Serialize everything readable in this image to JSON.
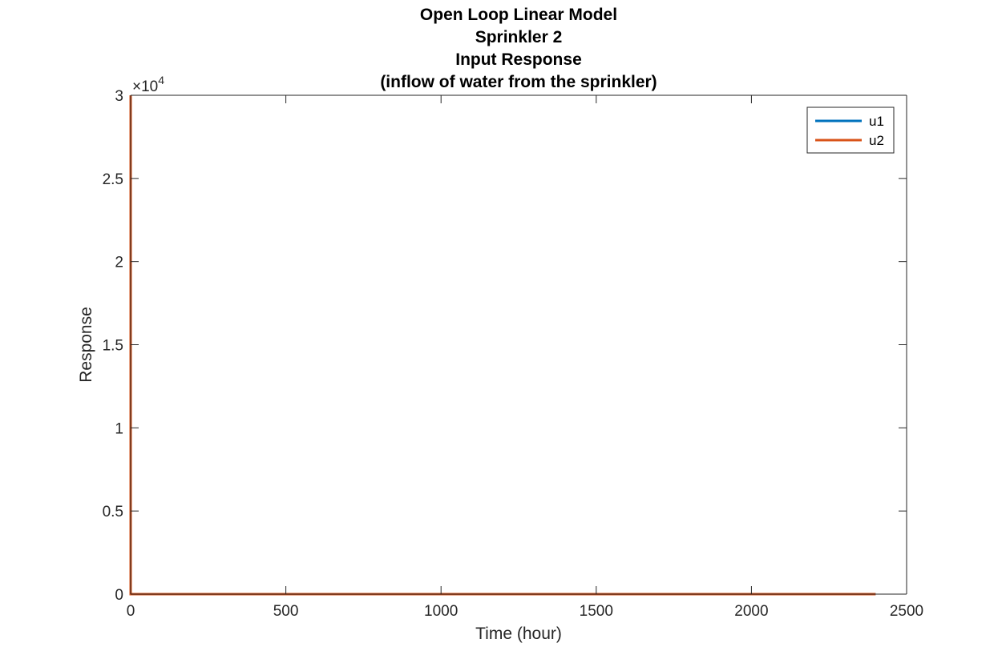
{
  "chart_data": {
    "type": "line",
    "title": [
      "Open Loop Linear Model",
      "Sprinkler 2",
      "Input Response",
      "(inflow of water from the sprinkler)"
    ],
    "xlabel": "Time (hour)",
    "ylabel": "Response",
    "xlim": [
      0,
      2500
    ],
    "ylim": [
      0,
      30000
    ],
    "xticks": [
      0,
      500,
      1000,
      1500,
      2000,
      2500
    ],
    "xtick_labels": [
      "0",
      "500",
      "1000",
      "1500",
      "2000",
      "2500"
    ],
    "yticks": [
      0,
      5000,
      10000,
      15000,
      20000,
      25000,
      30000
    ],
    "ytick_labels": [
      "0",
      "0.5",
      "1",
      "1.5",
      "2",
      "2.5",
      "3"
    ],
    "y_exponent": {
      "base": "×10",
      "power": "4"
    },
    "grid": false,
    "legend_position": "top-right",
    "series": [
      {
        "name": "u1",
        "color": "#0072BD",
        "x": [
          0,
          0,
          2400
        ],
        "y": [
          30000,
          0,
          0
        ]
      },
      {
        "name": "u2",
        "color": "#D95319",
        "x": [
          0,
          0,
          2400
        ],
        "y": [
          30000,
          0,
          0
        ]
      }
    ]
  }
}
